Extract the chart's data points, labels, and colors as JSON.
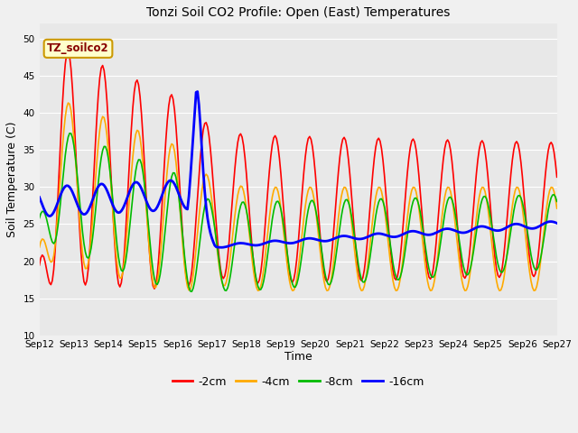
{
  "title": "Tonzi Soil CO2 Profile: Open (East) Temperatures",
  "xlabel": "Time",
  "ylabel": "Soil Temperature (C)",
  "ylim": [
    10,
    52
  ],
  "yticks": [
    10,
    15,
    20,
    25,
    30,
    35,
    40,
    45,
    50
  ],
  "fig_bg": "#f0f0f0",
  "plot_bg": "#e8e8e8",
  "annotation_text": "TZ_soilco2",
  "annotation_bg": "#ffffcc",
  "annotation_color": "#880000",
  "annotation_edge": "#cc9900",
  "series": {
    "neg2cm": {
      "color": "#ff0000",
      "label": "-2cm",
      "lw": 1.2
    },
    "neg4cm": {
      "color": "#ffaa00",
      "label": "-4cm",
      "lw": 1.2
    },
    "neg8cm": {
      "color": "#00bb00",
      "label": "-8cm",
      "lw": 1.2
    },
    "neg16cm": {
      "color": "#0000ff",
      "label": "-16cm",
      "lw": 2.0
    }
  },
  "x_tick_labels": [
    "Sep 12",
    "Sep 13",
    "Sep 14",
    "Sep 15",
    "Sep 16",
    "Sep 17",
    "Sep 18",
    "Sep 19",
    "Sep 20",
    "Sep 21",
    "Sep 22",
    "Sep 23",
    "Sep 24",
    "Sep 25",
    "Sep 26",
    "Sep 27"
  ],
  "x_tick_positions": [
    0,
    1,
    2,
    3,
    4,
    5,
    6,
    7,
    8,
    9,
    10,
    11,
    12,
    13,
    14,
    15
  ]
}
